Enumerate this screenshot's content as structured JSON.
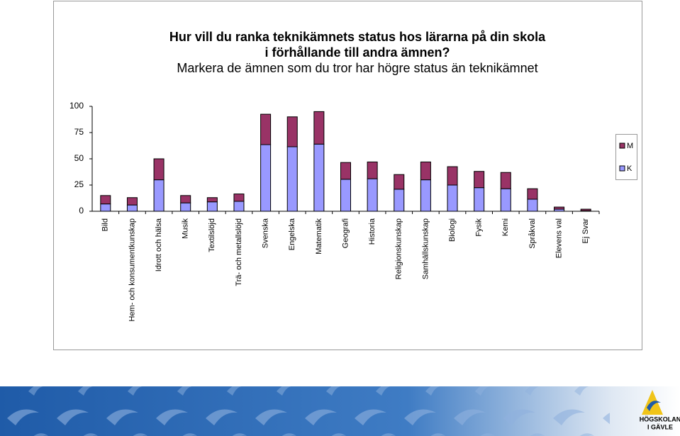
{
  "chart_data": {
    "type": "bar",
    "stacked": true,
    "title": [
      "Hur vill du ranka teknikämnets status hos lärarna på din skola",
      "i förhållande till andra ämnen?",
      "Markera de ämnen som du tror har högre status än teknikämnet"
    ],
    "categories": [
      "Bild",
      "Hem- och konsumentkunskap",
      "Idrott och hälsa",
      "Musik",
      "Textilslöjd",
      "Trä- och metallslöjd",
      "Svenska",
      "Engelska",
      "Matematik",
      "Geografi",
      "Historia",
      "Religionskunskap",
      "Samhällskunskap",
      "Biologi",
      "Fysik",
      "Kemi",
      "Språkval",
      "Elevens val",
      "Ej Svar"
    ],
    "series": [
      {
        "name": "K",
        "color": "#9999ff",
        "values": [
          7,
          6,
          30,
          8,
          9,
          9.5,
          63.5,
          61.5,
          64,
          30.5,
          31,
          21,
          30,
          25,
          22.5,
          21.5,
          11.5,
          2,
          0.5
        ]
      },
      {
        "name": "M",
        "color": "#993366",
        "values": [
          8,
          7,
          20,
          7,
          4,
          7,
          29,
          28.5,
          31,
          16,
          16,
          14,
          17,
          17.5,
          15.5,
          15.5,
          10,
          2,
          1.5
        ]
      }
    ],
    "ylim": [
      0,
      100
    ],
    "yticks": [
      0,
      25,
      50,
      75,
      100
    ],
    "grid": false,
    "legend": "right"
  },
  "footer": {
    "logo": [
      "HÖGSKOLAN",
      "I GÄVLE"
    ]
  }
}
